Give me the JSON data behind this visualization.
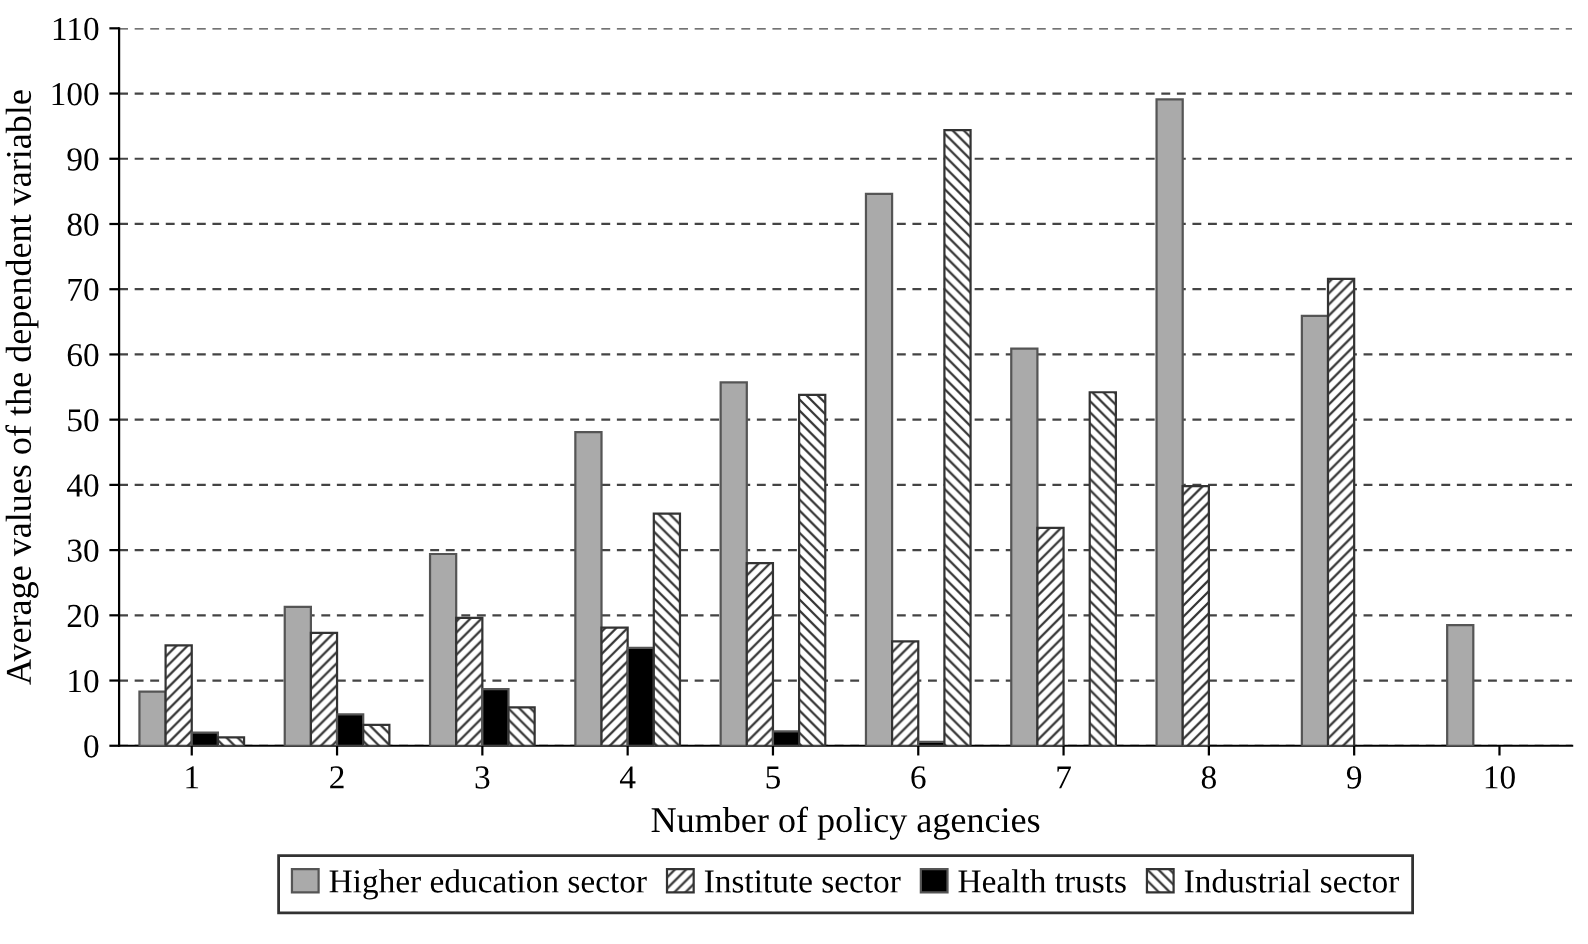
{
  "chart_data": {
    "type": "bar",
    "xlabel": "Number of policy agencies",
    "ylabel": "Average values of the dependent variable",
    "categories": [
      "1",
      "2",
      "3",
      "4",
      "5",
      "6",
      "7",
      "8",
      "9",
      "10"
    ],
    "series": [
      {
        "name": "Higher education sector",
        "color": "#aaaaaa",
        "values": [
          8.3,
          21.3,
          29.4,
          48.1,
          55.7,
          84.6,
          60.9,
          99.1,
          65.9,
          18.5
        ]
      },
      {
        "name": "Institute sector",
        "color": "#333333",
        "values": [
          15.4,
          17.3,
          19.6,
          18.1,
          28.0,
          16.0,
          33.4,
          39.8,
          71.6,
          null
        ]
      },
      {
        "name": "Health trusts",
        "color": "#000000",
        "values": [
          2.0,
          4.8,
          8.7,
          15.0,
          2.2,
          0.6,
          null,
          null,
          null,
          null
        ]
      },
      {
        "name": "Industrial sector",
        "color": "#333333",
        "values": [
          1.3,
          3.2,
          5.9,
          35.6,
          53.8,
          94.4,
          54.2,
          null,
          null,
          null
        ]
      }
    ],
    "ylim": [
      0,
      110
    ],
    "yticks": [
      0,
      10,
      20,
      30,
      40,
      50,
      60,
      70,
      80,
      90,
      100,
      110
    ],
    "grid": "y",
    "legend": "bottom"
  }
}
